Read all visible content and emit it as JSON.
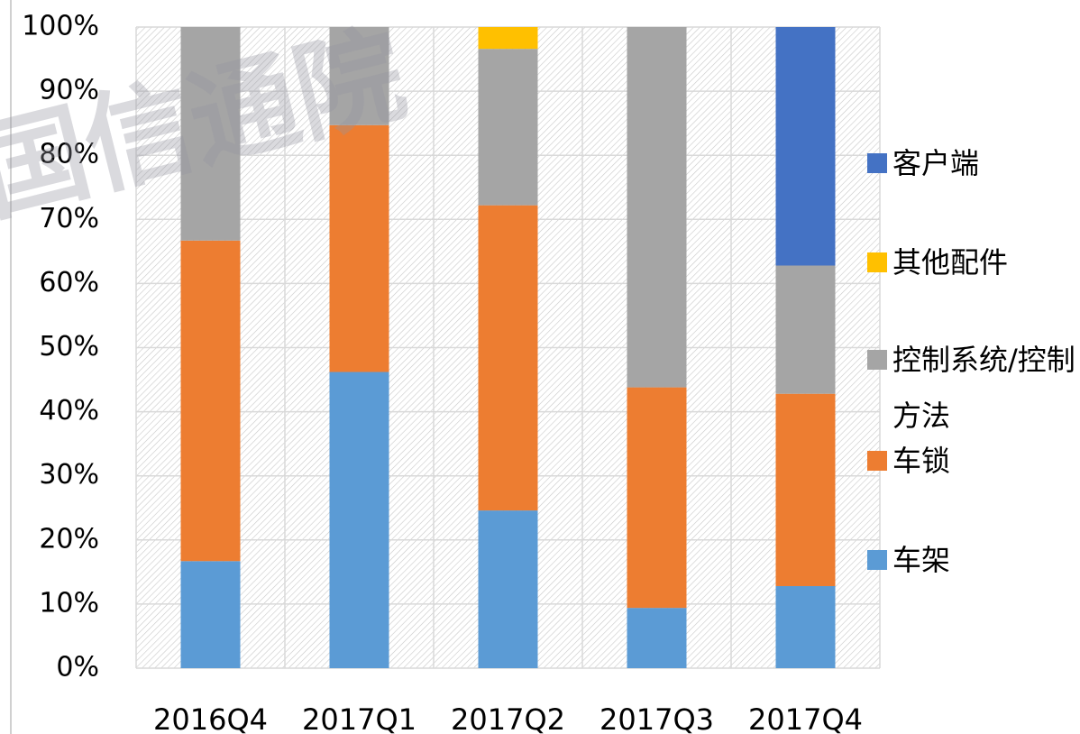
{
  "chart_data": {
    "type": "stacked_bar",
    "watermark": "国信通院",
    "categories": [
      "2016Q4",
      "2017Q1",
      "2017Q2",
      "2017Q3",
      "2017Q4"
    ],
    "series": [
      {
        "name": "车架",
        "color": "#5b9bd5",
        "values": [
          16.7,
          46.2,
          24.6,
          9.4,
          12.8
        ]
      },
      {
        "name": "车锁",
        "color": "#ed7d31",
        "values": [
          50.0,
          38.5,
          47.6,
          34.4,
          30.0
        ]
      },
      {
        "name": "控制系统/控制方法",
        "color": "#a5a5a5",
        "values": [
          33.3,
          15.3,
          24.4,
          56.2,
          20.0
        ]
      },
      {
        "name": "其他配件",
        "color": "#ffc000",
        "values": [
          0,
          0,
          3.4,
          0,
          0
        ]
      },
      {
        "name": "客户端",
        "color": "#4472c4",
        "values": [
          0,
          0,
          0,
          0,
          37.2
        ]
      }
    ],
    "ylim": [
      0,
      100
    ],
    "yticks": [
      {
        "value": 0,
        "label": "0%"
      },
      {
        "value": 10,
        "label": "10%"
      },
      {
        "value": 20,
        "label": "20%"
      },
      {
        "value": 30,
        "label": "30%"
      },
      {
        "value": 40,
        "label": "40%"
      },
      {
        "value": 50,
        "label": "50%"
      },
      {
        "value": 60,
        "label": "60%"
      },
      {
        "value": 70,
        "label": "70%"
      },
      {
        "value": 80,
        "label": "80%"
      },
      {
        "value": 90,
        "label": "90%"
      },
      {
        "value": 100,
        "label": "100%"
      }
    ],
    "grid": true,
    "legend": "right"
  }
}
